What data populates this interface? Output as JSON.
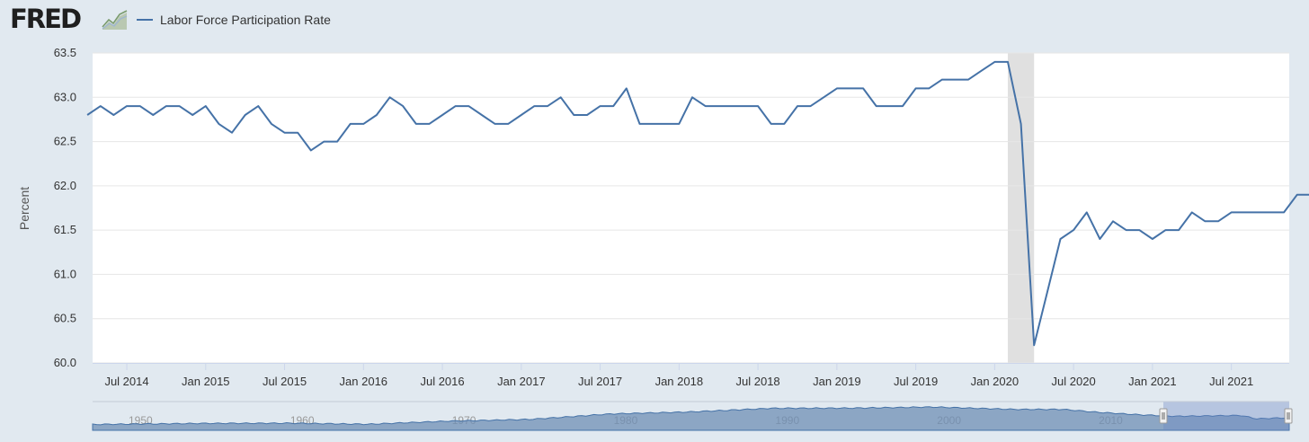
{
  "brand": {
    "logo_text": "FRED",
    "logo_icon": "chart-line-icon"
  },
  "legend": {
    "series_name": "Labor Force Participation Rate",
    "color": "#4572a7"
  },
  "chart_data": {
    "type": "line",
    "ylabel": "Percent",
    "ylim": [
      60.0,
      63.5
    ],
    "yticks": [
      "63.5",
      "63.0",
      "62.5",
      "62.0",
      "61.5",
      "61.0",
      "60.5",
      "60.0"
    ],
    "xticks": [
      "Jul 2014",
      "Jan 2015",
      "Jul 2015",
      "Jan 2016",
      "Jul 2016",
      "Jan 2017",
      "Jul 2017",
      "Jan 2018",
      "Jul 2018",
      "Jan 2019",
      "Jul 2019",
      "Jan 2020",
      "Jul 2020",
      "Jan 2021",
      "Jul 2021"
    ],
    "grid": true,
    "recession_shading": {
      "start": "2020-02",
      "end": "2020-04"
    },
    "series": [
      {
        "name": "Labor Force Participation Rate",
        "color": "#4572a7",
        "start": "2014-04",
        "values": [
          62.8,
          62.9,
          62.8,
          62.9,
          62.9,
          62.8,
          62.9,
          62.9,
          62.8,
          62.9,
          62.7,
          62.6,
          62.8,
          62.9,
          62.7,
          62.6,
          62.6,
          62.4,
          62.5,
          62.5,
          62.7,
          62.7,
          62.8,
          63.0,
          62.9,
          62.7,
          62.7,
          62.8,
          62.9,
          62.9,
          62.8,
          62.7,
          62.7,
          62.8,
          62.9,
          62.9,
          63.0,
          62.8,
          62.8,
          62.9,
          62.9,
          63.1,
          62.7,
          62.7,
          62.7,
          62.7,
          63.0,
          62.9,
          62.9,
          62.9,
          62.9,
          62.9,
          62.7,
          62.7,
          62.9,
          62.9,
          63.0,
          63.1,
          63.1,
          63.1,
          62.9,
          62.9,
          62.9,
          63.1,
          63.1,
          63.2,
          63.2,
          63.2,
          63.3,
          63.4,
          63.4,
          62.7,
          60.2,
          60.8,
          61.4,
          61.5,
          61.7,
          61.4,
          61.6,
          61.5,
          61.5,
          61.4,
          61.5,
          61.5,
          61.7,
          61.6,
          61.6,
          61.7,
          61.7,
          61.7,
          61.7,
          61.7,
          61.9,
          61.9
        ]
      }
    ]
  },
  "navigator": {
    "labels": [
      "1950",
      "1960",
      "1970",
      "1980",
      "1990",
      "2000",
      "2010"
    ],
    "series_color": "#4572a7"
  }
}
